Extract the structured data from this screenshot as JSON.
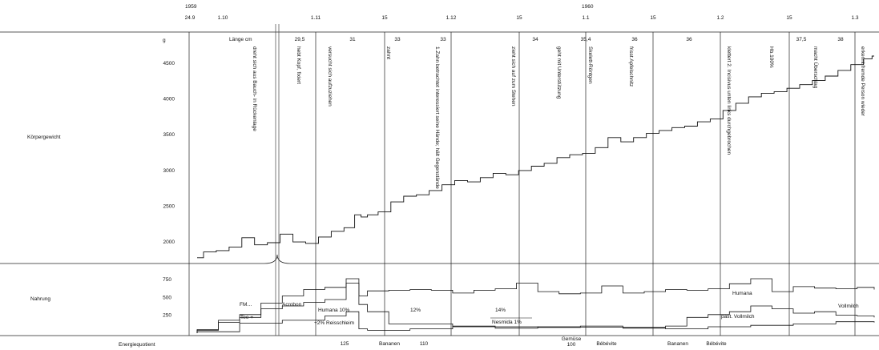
{
  "chart_data": {
    "type": "line",
    "date_header": {
      "year_labels": [
        "1959",
        "1960"
      ],
      "dates": [
        "24.9",
        "1.10",
        "1.11",
        "15",
        "1.12",
        "15",
        "1.1",
        "15",
        "1.2",
        "15",
        "1.3"
      ]
    },
    "length_header": {
      "title": "Länge cm",
      "values": [
        "29,5",
        "31",
        "33",
        "33",
        "34",
        "35,4",
        "36",
        "36",
        "37,5",
        "38"
      ]
    },
    "panels": [
      {
        "label": "Körpergewicht",
        "unit": "g",
        "yticks": [
          "4500",
          "4000",
          "3500",
          "3000",
          "2500",
          "2000"
        ],
        "ylim": [
          1800,
          4600
        ],
        "series": [
          {
            "x": [
              0,
              3,
              6,
              9,
              12,
              15,
              18,
              21,
              24,
              27,
              30,
              33,
              36,
              38,
              39,
              41,
              44,
              47,
              50,
              53,
              56,
              59,
              62,
              65,
              68,
              71,
              74,
              77,
              80,
              83,
              86,
              89,
              92,
              95,
              98,
              101,
              104,
              107,
              110,
              113,
              116,
              119,
              122,
              125,
              128,
              131,
              134,
              137,
              140,
              143,
              146,
              149,
              152,
              155,
              158,
              159
            ],
            "y": [
              1780,
              1860,
              1880,
              1930,
              2060,
              1960,
              1990,
              2110,
              2000,
              1980,
              2070,
              2150,
              2200,
              2380,
              2350,
              2380,
              2420,
              2560,
              2640,
              2660,
              2720,
              2800,
              2860,
              2840,
              2900,
              2960,
              2940,
              3000,
              3060,
              3100,
              3180,
              3220,
              3240,
              3320,
              3460,
              3400,
              3460,
              3520,
              3560,
              3600,
              3620,
              3680,
              3720,
              3840,
              3940,
              4030,
              4080,
              4100,
              4150,
              4200,
              4260,
              4320,
              4400,
              4480,
              4560,
              4600
            ]
          }
        ]
      },
      {
        "label": "Nahrung",
        "yticks": [
          "750",
          "500",
          "250"
        ],
        "ylim": [
          0,
          850
        ],
        "series": [
          {
            "x": [
              0,
              5,
              10,
              15,
              20,
              25,
              30,
              35,
              38,
              40,
              45,
              50,
              55,
              60,
              65,
              70,
              75,
              80,
              85,
              90,
              95,
              100,
              105,
              110,
              115,
              120,
              125,
              130,
              135,
              140,
              145,
              150,
              155,
              159
            ],
            "y": [
              50,
              180,
              260,
              420,
              520,
              610,
              640,
              760,
              520,
              590,
              600,
              610,
              600,
              560,
              600,
              620,
              700,
              580,
              550,
              560,
              660,
              560,
              580,
              610,
              600,
              620,
              690,
              760,
              580,
              650,
              630,
              620,
              640,
              610
            ]
          },
          {
            "x": [
              0,
              5,
              10,
              15,
              20,
              25,
              30,
              35,
              38,
              40,
              45,
              60,
              80,
              90,
              100,
              110,
              115,
              120,
              125,
              130,
              135,
              140,
              145,
              150,
              155,
              159
            ],
            "y": [
              40,
              150,
              220,
              340,
              380,
              430,
              470,
              700,
              400,
              300,
              130,
              90,
              80,
              85,
              80,
              100,
              220,
              260,
              300,
              380,
              340,
              280,
              300,
              250,
              240,
              220
            ]
          },
          {
            "x": [
              0,
              10,
              20,
              30,
              35,
              38,
              40,
              50,
              60,
              70,
              80,
              90,
              100,
              110,
              120,
              130,
              140,
              150,
              159
            ],
            "y": [
              20,
              140,
              180,
              240,
              300,
              60,
              40,
              60,
              100,
              70,
              90,
              100,
              70,
              60,
              90,
              110,
              130,
              160,
              150
            ]
          }
        ],
        "annotations": [
          "FM…",
          "Tee +",
          "Acrobon",
          "Humana 10%",
          "+2% Reisschleim",
          "12%",
          "14%",
          "Nesmida 1%",
          "Humana",
          "past. Vollmilch",
          "Vollmilch"
        ]
      }
    ],
    "events": [
      "dreht sich aus Bauch- in Rückenlage",
      "hebt Kopf, fixiert",
      "versucht sich aufzuziehen",
      "zahnt",
      "1.Zahn betrachtet interessiert seine Hände; hält Gegenstände",
      "zieht sich auf zum Stehen",
      "geht mit Unterstützung",
      "Skelett-Röntgen",
      "frisst Apfelschnitz",
      "klettert 2. Incisivus unten links durchgebrochen",
      "Hb.100%",
      "macht Überschlag",
      "erkennt fremde Person wieder"
    ],
    "energy_row": {
      "label": "Energiequotient",
      "values": [
        "125",
        "Bananen",
        "110",
        "Gemüse",
        "100",
        "Bébévite",
        "Bananen",
        "Bébévite"
      ]
    }
  }
}
